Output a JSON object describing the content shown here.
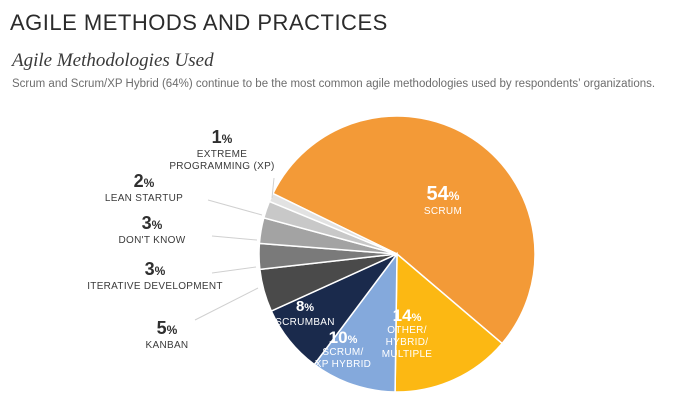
{
  "header": {
    "section_title": "AGILE METHODS AND PRACTICES"
  },
  "chart_data": {
    "type": "pie",
    "title": "Agile Methodologies Used",
    "subtitle": "Scrum and Scrum/XP Hybrid (64%) continue to be the most common agile methodologies used by respondents’ organizations.",
    "slices": [
      {
        "label": "SCRUM",
        "lines": [
          "SCRUM"
        ],
        "value": 54,
        "color": "#F39A37",
        "text_color": "#ffffff",
        "position": "inside"
      },
      {
        "label": "OTHER/HYBRID/MULTIPLE",
        "lines": [
          "OTHER/",
          "HYBRID/",
          "MULTIPLE"
        ],
        "value": 14,
        "color": "#FCB813",
        "text_color": "#ffffff",
        "position": "inside"
      },
      {
        "label": "SCRUM/XP HYBRID",
        "lines": [
          "SCRUM/",
          "XP HYBRID"
        ],
        "value": 10,
        "color": "#84A9DC",
        "text_color": "#ffffff",
        "position": "inside"
      },
      {
        "label": "SCRUMBAN",
        "lines": [
          "SCRUMBAN"
        ],
        "value": 8,
        "color": "#1A2A4C",
        "text_color": "#ffffff",
        "position": "inside"
      },
      {
        "label": "KANBAN",
        "lines": [
          "KANBAN"
        ],
        "value": 5,
        "color": "#4A4A4A",
        "text_color": "#333333",
        "position": "outside"
      },
      {
        "label": "ITERATIVE DEVELOPMENT",
        "lines": [
          "ITERATIVE DEVELOPMENT"
        ],
        "value": 3,
        "color": "#7A7A7A",
        "text_color": "#333333",
        "position": "outside"
      },
      {
        "label": "DON'T KNOW",
        "lines": [
          "DON'T KNOW"
        ],
        "value": 3,
        "color": "#A3A3A3",
        "text_color": "#333333",
        "position": "outside"
      },
      {
        "label": "LEAN STARTUP",
        "lines": [
          "LEAN STARTUP"
        ],
        "value": 2,
        "color": "#C8C8C8",
        "text_color": "#333333",
        "position": "outside"
      },
      {
        "label": "EXTREME PROGRAMMING (XP)",
        "lines": [
          "EXTREME",
          "PROGRAMMING (XP)"
        ],
        "value": 1,
        "color": "#E2E2E2",
        "text_color": "#333333",
        "position": "outside"
      }
    ],
    "percent_suffix": "%",
    "legend": "none"
  }
}
